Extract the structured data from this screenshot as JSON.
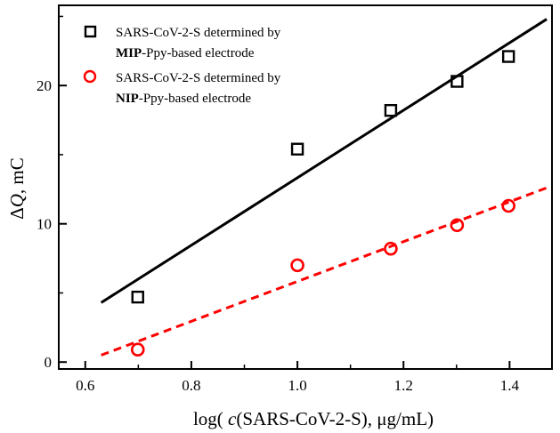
{
  "chart_data": {
    "type": "scatter",
    "xlabel": {
      "prefix": "log( ",
      "italic": "c",
      "middle": "(SARS-CoV-2-S),  ",
      "unit": "μg/mL)"
    },
    "ylabel": {
      "prefix": "Δ",
      "italic": "Q",
      "suffix": ", mC"
    },
    "xlim": [
      0.55,
      1.48
    ],
    "ylim": [
      -0.5,
      25.8
    ],
    "xticks": [
      0.6,
      0.8,
      1.0,
      1.2,
      1.4
    ],
    "xtick_labels": [
      "0.6",
      "0.8",
      "1.0",
      "1.2",
      "1.4"
    ],
    "yticks": [
      0,
      10,
      20
    ],
    "ytick_labels": [
      "0",
      "10",
      "20"
    ],
    "legend_position": "top-left",
    "series": [
      {
        "legend_line1": "SARS-CoV-2-S determined by",
        "legend_bold": "MIP",
        "legend_line2_rest": "-Ppy-based electrode",
        "marker": "square",
        "color": "#000000",
        "x": [
          0.699,
          1.0,
          1.176,
          1.301,
          1.398
        ],
        "y": [
          4.7,
          15.4,
          18.2,
          20.3,
          22.1
        ],
        "fit": {
          "x": [
            0.63,
            1.47
          ],
          "y": [
            4.3,
            24.8
          ],
          "style": "solid"
        }
      },
      {
        "legend_line1": "SARS-CoV-2-S determined by",
        "legend_bold": "NIP",
        "legend_line2_rest": "-Ppy-based electrode",
        "marker": "circle",
        "color": "#ff0000",
        "x": [
          0.699,
          1.0,
          1.176,
          1.301,
          1.398
        ],
        "y": [
          0.9,
          7.0,
          8.2,
          9.9,
          11.3
        ],
        "fit": {
          "x": [
            0.63,
            1.47
          ],
          "y": [
            0.5,
            12.6
          ],
          "style": "dashed"
        }
      }
    ]
  }
}
